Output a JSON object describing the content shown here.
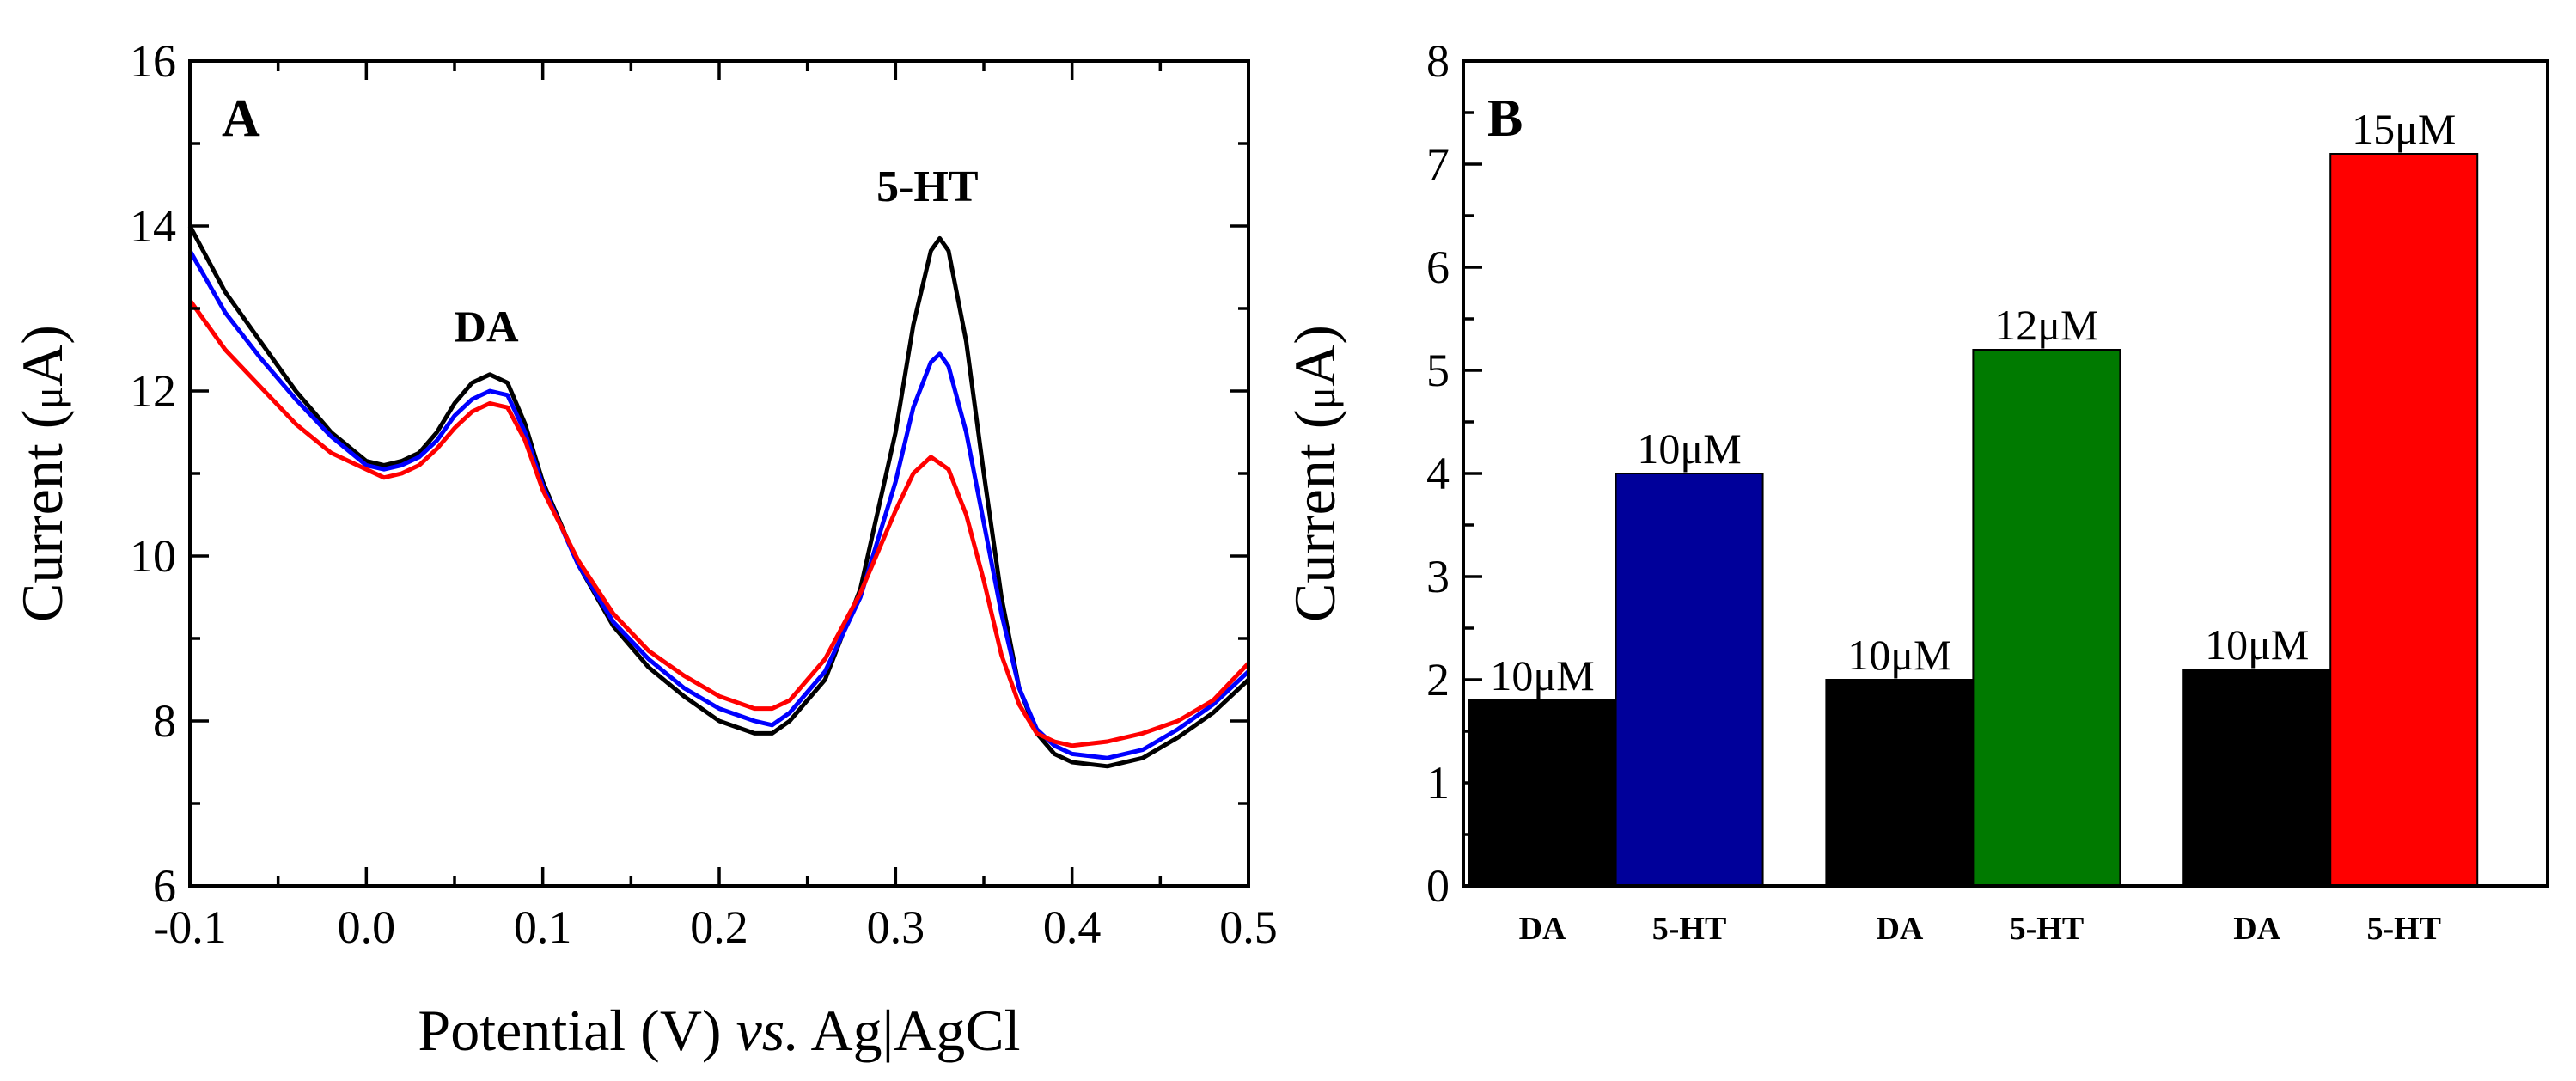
{
  "chart_data": [
    {
      "panel": "A",
      "type": "line",
      "xlabel_parts": [
        "Potential (V) ",
        "vs.",
        " Ag|AgCl"
      ],
      "ylabel_parts": [
        "Current (",
        "μ",
        "A)"
      ],
      "xlim": [
        -0.1,
        0.5
      ],
      "ylim": [
        6,
        16
      ],
      "xticks": [
        -0.1,
        0.0,
        0.1,
        0.2,
        0.3,
        0.4,
        0.5
      ],
      "xtick_labels": [
        "-0.1",
        "0.0",
        "0.1",
        "0.2",
        "0.3",
        "0.4",
        "0.5"
      ],
      "yticks": [
        6,
        8,
        10,
        12,
        14,
        16
      ],
      "ytick_labels": [
        "6",
        "8",
        "10",
        "12",
        "14",
        "16"
      ],
      "annotations": [
        {
          "text": "DA",
          "x": 0.068,
          "y": 12.6
        },
        {
          "text": "5-HT",
          "x": 0.318,
          "y": 14.3
        }
      ],
      "series": [
        {
          "name": "black",
          "color": "#000000",
          "x": [
            -0.1,
            -0.08,
            -0.06,
            -0.04,
            -0.02,
            0.0,
            0.01,
            0.02,
            0.03,
            0.04,
            0.05,
            0.06,
            0.07,
            0.08,
            0.09,
            0.1,
            0.12,
            0.14,
            0.16,
            0.18,
            0.2,
            0.22,
            0.23,
            0.24,
            0.26,
            0.28,
            0.3,
            0.31,
            0.32,
            0.325,
            0.33,
            0.34,
            0.35,
            0.36,
            0.37,
            0.38,
            0.39,
            0.4,
            0.42,
            0.44,
            0.46,
            0.48,
            0.5
          ],
          "y": [
            14.0,
            13.2,
            12.6,
            12.0,
            11.5,
            11.15,
            11.1,
            11.15,
            11.25,
            11.5,
            11.85,
            12.1,
            12.2,
            12.1,
            11.6,
            10.9,
            9.9,
            9.15,
            8.65,
            8.3,
            8.0,
            7.85,
            7.85,
            8.0,
            8.5,
            9.6,
            11.5,
            12.8,
            13.7,
            13.85,
            13.7,
            12.6,
            11.0,
            9.5,
            8.4,
            7.85,
            7.6,
            7.5,
            7.45,
            7.55,
            7.8,
            8.1,
            8.5
          ]
        },
        {
          "name": "blue",
          "color": "#0000ff",
          "x": [
            -0.1,
            -0.08,
            -0.06,
            -0.04,
            -0.02,
            0.0,
            0.01,
            0.02,
            0.03,
            0.04,
            0.05,
            0.06,
            0.07,
            0.08,
            0.09,
            0.1,
            0.12,
            0.14,
            0.16,
            0.18,
            0.2,
            0.22,
            0.23,
            0.24,
            0.26,
            0.28,
            0.3,
            0.31,
            0.32,
            0.325,
            0.33,
            0.34,
            0.35,
            0.36,
            0.37,
            0.38,
            0.39,
            0.4,
            0.42,
            0.44,
            0.46,
            0.48,
            0.5
          ],
          "y": [
            13.7,
            12.95,
            12.4,
            11.9,
            11.45,
            11.1,
            11.05,
            11.1,
            11.2,
            11.4,
            11.7,
            11.9,
            12.0,
            11.95,
            11.5,
            10.85,
            9.9,
            9.2,
            8.75,
            8.4,
            8.15,
            8.0,
            7.95,
            8.1,
            8.6,
            9.5,
            10.9,
            11.8,
            12.35,
            12.45,
            12.3,
            11.5,
            10.4,
            9.3,
            8.4,
            7.9,
            7.7,
            7.6,
            7.55,
            7.65,
            7.9,
            8.2,
            8.6
          ]
        },
        {
          "name": "red",
          "color": "#ff0000",
          "x": [
            -0.1,
            -0.08,
            -0.06,
            -0.04,
            -0.02,
            0.0,
            0.01,
            0.02,
            0.03,
            0.04,
            0.05,
            0.06,
            0.07,
            0.08,
            0.09,
            0.1,
            0.12,
            0.14,
            0.16,
            0.18,
            0.2,
            0.22,
            0.23,
            0.24,
            0.26,
            0.28,
            0.3,
            0.31,
            0.32,
            0.33,
            0.34,
            0.35,
            0.36,
            0.37,
            0.38,
            0.39,
            0.4,
            0.42,
            0.44,
            0.46,
            0.48,
            0.5
          ],
          "y": [
            13.1,
            12.5,
            12.05,
            11.6,
            11.25,
            11.05,
            10.95,
            11.0,
            11.1,
            11.3,
            11.55,
            11.75,
            11.85,
            11.8,
            11.4,
            10.8,
            9.95,
            9.3,
            8.85,
            8.55,
            8.3,
            8.15,
            8.15,
            8.25,
            8.75,
            9.55,
            10.55,
            11.0,
            11.2,
            11.05,
            10.5,
            9.7,
            8.8,
            8.2,
            7.85,
            7.75,
            7.7,
            7.75,
            7.85,
            8.0,
            8.25,
            8.7
          ]
        }
      ]
    },
    {
      "panel": "B",
      "type": "bar",
      "ylabel_parts": [
        "Current (",
        "μ",
        "A)"
      ],
      "ylim": [
        0,
        8
      ],
      "yticks": [
        0,
        1,
        2,
        3,
        4,
        5,
        6,
        7,
        8
      ],
      "ytick_labels": [
        "0",
        "1",
        "2",
        "3",
        "4",
        "5",
        "6",
        "7",
        "8"
      ],
      "bars": [
        {
          "category": "DA",
          "value": 1.8,
          "color": "#000000",
          "label": "10μM"
        },
        {
          "category": "5-HT",
          "value": 4.0,
          "color": "#00009a",
          "label": "10μM"
        },
        {
          "category": "DA",
          "value": 2.0,
          "color": "#000000",
          "label": "10μM"
        },
        {
          "category": "5-HT",
          "value": 5.2,
          "color": "#007a00",
          "label": "12μM"
        },
        {
          "category": "DA",
          "value": 2.1,
          "color": "#000000",
          "label": "10μM"
        },
        {
          "category": "5-HT",
          "value": 7.1,
          "color": "#ff0000",
          "label": "15μM"
        }
      ]
    }
  ]
}
